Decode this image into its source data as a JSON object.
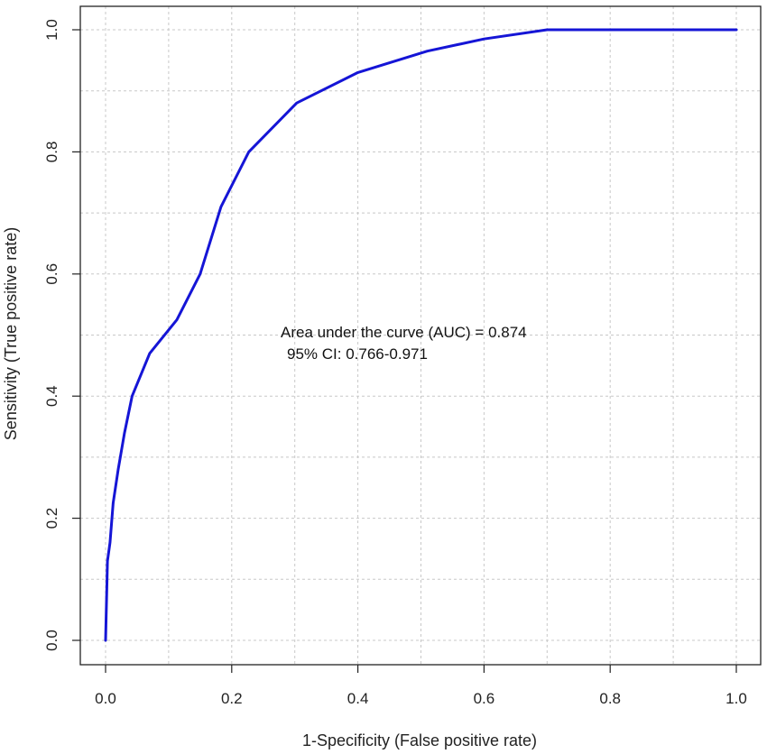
{
  "chart_data": {
    "type": "line",
    "title": "",
    "xlabel": "1-Specificity (False positive rate)",
    "ylabel": "Sensitivity (True positive rate)",
    "xlim": [
      0,
      1
    ],
    "ylim": [
      0,
      1
    ],
    "x_ticks": [
      "0.0",
      "0.2",
      "0.4",
      "0.6",
      "0.8",
      "1.0"
    ],
    "y_ticks": [
      "0.0",
      "0.2",
      "0.4",
      "0.6",
      "0.8",
      "1.0"
    ],
    "grid": true,
    "line_color": "#1515d6",
    "annotations": [
      "Area under the curve (AUC) = 0.874",
      "95% CI: 0.766-0.971"
    ],
    "series": [
      {
        "x": [
          0.0,
          0.003,
          0.007,
          0.012,
          0.02,
          0.03,
          0.042,
          0.07,
          0.113,
          0.15,
          0.183,
          0.227,
          0.303,
          0.4,
          0.51,
          0.6,
          0.7,
          1.0
        ],
        "y": [
          0.0,
          0.13,
          0.16,
          0.225,
          0.28,
          0.34,
          0.4,
          0.47,
          0.525,
          0.6,
          0.71,
          0.8,
          0.88,
          0.93,
          0.965,
          0.985,
          1.0,
          1.0
        ]
      }
    ]
  }
}
